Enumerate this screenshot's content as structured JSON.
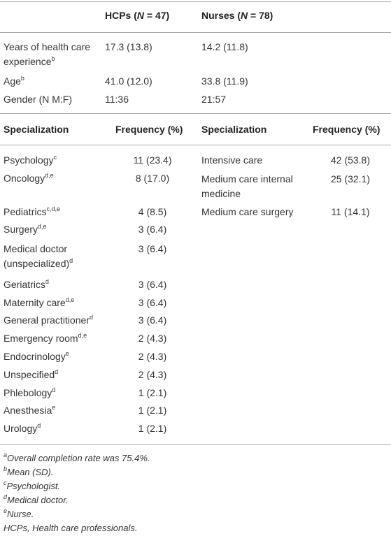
{
  "header": {
    "hcps": {
      "label": "HCPs (",
      "italic": "N",
      "rest": " = 47)"
    },
    "nurses": {
      "label": "Nurses (",
      "italic": "N",
      "rest": " = 78)"
    }
  },
  "summary": [
    {
      "label": {
        "text": "Years of health care experience",
        "sup": "b"
      },
      "hcps": "17.3 (13.8)",
      "nurses": "14.2 (11.8)"
    },
    {
      "label": {
        "text": "Age",
        "sup": "b"
      },
      "hcps": "41.0 (12.0)",
      "nurses": "33.8 (11.9)"
    },
    {
      "label": {
        "text": "Gender (N M:F)"
      },
      "hcps": "11:36",
      "nurses": "21:57"
    }
  ],
  "specialization_header": [
    "Specialization",
    "Frequency (%)",
    "Specialization",
    "Frequency (%)"
  ],
  "hcp_specializations": [
    {
      "name": "Psychology",
      "sup": "c",
      "frequency": "11 (23.4)"
    },
    {
      "name": "Oncology",
      "sup": "d,e",
      "frequency": "8 (17.0)"
    },
    {
      "name": "Pediatrics",
      "sup": "c,d,e",
      "frequency": "4 (8.5)"
    },
    {
      "name": "Surgery",
      "sup": "d,e",
      "frequency": "3 (6.4)"
    },
    {
      "name": "Medical doctor (unspecialized)",
      "sup": "d",
      "frequency": "3 (6.4)"
    },
    {
      "name": "Geriatrics",
      "sup": "d",
      "frequency": "3 (6.4)"
    },
    {
      "name": "Maternity care",
      "sup": "d,e",
      "frequency": "3 (6.4)"
    },
    {
      "name": "General practitioner",
      "sup": "d",
      "frequency": "3 (6.4)"
    },
    {
      "name": "Emergency room",
      "sup": "d,e",
      "frequency": "2 (4.3)"
    },
    {
      "name": "Endocrinology",
      "sup": "e",
      "frequency": "2 (4.3)"
    },
    {
      "name": "Unspecified",
      "sup": "d",
      "frequency": "2 (4.3)"
    },
    {
      "name": "Phlebology",
      "sup": "d",
      "frequency": "1 (2.1)"
    },
    {
      "name": "Anesthesia",
      "sup": "e",
      "frequency": "1 (2.1)"
    },
    {
      "name": "Urology",
      "sup": "d",
      "frequency": "1 (2.1)"
    }
  ],
  "nurse_specializations": [
    {
      "name": "Intensive care",
      "frequency": "42 (53.8)"
    },
    {
      "name": "Medium care internal medicine",
      "frequency": "25 (32.1)"
    },
    {
      "name": "Medium care surgery",
      "frequency": "11 (14.1)"
    }
  ],
  "footnotes": [
    {
      "mark": "a",
      "text": "Overall completion rate was 75.4%."
    },
    {
      "mark": "b",
      "text": "Mean (SD)."
    },
    {
      "mark": "c",
      "text": "Psychologist."
    },
    {
      "mark": "d",
      "text": "Medical doctor."
    },
    {
      "mark": "e",
      "text": "Nurse."
    },
    {
      "text": "HCPs, Health care professionals."
    }
  ]
}
